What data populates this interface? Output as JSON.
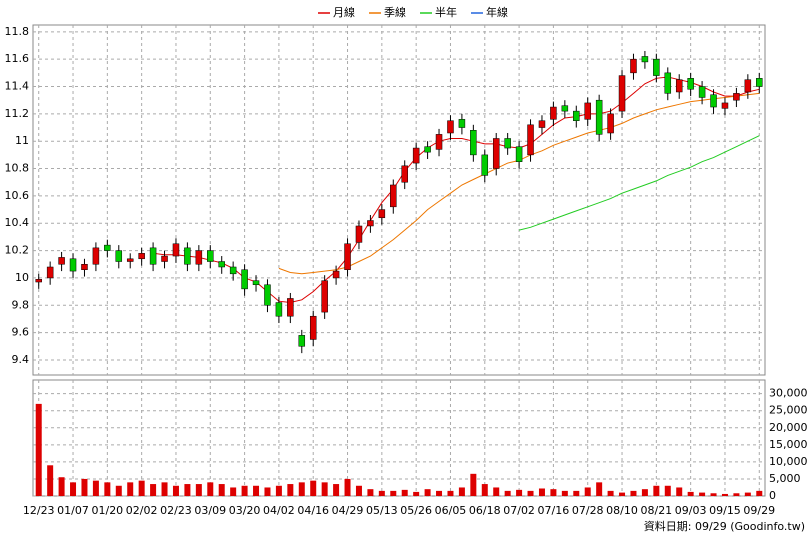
{
  "chart_data": {
    "type": "candlestick",
    "categories": [
      "12/23",
      null,
      null,
      "01/07",
      null,
      null,
      "01/20",
      null,
      null,
      "02/02",
      null,
      null,
      "02/23",
      null,
      null,
      "03/09",
      null,
      null,
      "03/20",
      null,
      null,
      "04/02",
      null,
      null,
      "04/16",
      null,
      null,
      "04/29",
      null,
      null,
      "05/13",
      null,
      null,
      "05/26",
      null,
      null,
      "06/05",
      null,
      null,
      "06/18",
      null,
      null,
      "07/02",
      null,
      null,
      "07/16",
      null,
      null,
      "07/28",
      null,
      null,
      "08/10",
      null,
      null,
      "08/21",
      null,
      null,
      "09/03",
      null,
      null,
      "09/15",
      null,
      null,
      "09/29"
    ],
    "open": [
      9.97,
      10.0,
      10.1,
      10.14,
      10.06,
      10.1,
      10.24,
      10.2,
      10.12,
      10.14,
      10.22,
      10.12,
      10.16,
      10.22,
      10.1,
      10.2,
      10.12,
      10.08,
      10.06,
      9.98,
      9.95,
      9.82,
      9.72,
      9.58,
      9.55,
      9.75,
      10.0,
      10.06,
      10.26,
      10.38,
      10.44,
      10.52,
      10.7,
      10.84,
      10.96,
      10.94,
      11.06,
      11.16,
      11.08,
      10.9,
      10.8,
      11.02,
      10.96,
      10.9,
      11.1,
      11.16,
      11.26,
      11.22,
      11.16,
      11.3,
      11.06,
      11.22,
      11.5,
      11.62,
      11.6,
      11.5,
      11.36,
      11.46,
      11.4,
      11.34,
      11.24,
      11.3,
      11.36,
      11.46
    ],
    "high": [
      10.03,
      10.12,
      10.19,
      10.18,
      10.14,
      10.26,
      10.28,
      10.24,
      10.18,
      10.22,
      10.26,
      10.2,
      10.29,
      10.26,
      10.24,
      10.24,
      10.16,
      10.12,
      10.1,
      10.02,
      9.99,
      9.86,
      9.89,
      9.62,
      9.76,
      10.02,
      10.09,
      10.29,
      10.42,
      10.46,
      10.54,
      10.72,
      10.86,
      10.99,
      11.0,
      11.09,
      11.19,
      11.2,
      11.12,
      10.94,
      11.06,
      11.06,
      11.0,
      11.16,
      11.19,
      11.29,
      11.3,
      11.26,
      11.32,
      11.34,
      11.24,
      11.52,
      11.64,
      11.66,
      11.64,
      11.54,
      11.49,
      11.5,
      11.44,
      11.38,
      11.32,
      11.39,
      11.49,
      11.5
    ],
    "low": [
      9.92,
      9.95,
      10.05,
      10.0,
      10.01,
      10.05,
      10.15,
      10.07,
      10.07,
      10.09,
      10.05,
      10.07,
      10.11,
      10.05,
      10.05,
      10.07,
      10.03,
      9.98,
      9.87,
      9.9,
      9.75,
      9.67,
      9.67,
      9.45,
      9.5,
      9.7,
      9.95,
      10.01,
      10.21,
      10.33,
      10.39,
      10.47,
      10.65,
      10.79,
      10.87,
      10.89,
      11.01,
      11.05,
      10.85,
      10.7,
      10.75,
      10.9,
      10.8,
      10.85,
      11.05,
      11.11,
      11.17,
      11.1,
      11.11,
      11.0,
      11.01,
      11.17,
      11.45,
      11.53,
      11.43,
      11.3,
      11.31,
      11.33,
      11.27,
      11.2,
      11.19,
      11.25,
      11.31,
      11.35
    ],
    "close": [
      9.99,
      10.08,
      10.15,
      10.05,
      10.1,
      10.22,
      10.2,
      10.12,
      10.14,
      10.18,
      10.1,
      10.16,
      10.25,
      10.1,
      10.2,
      10.12,
      10.08,
      10.03,
      9.92,
      9.95,
      9.8,
      9.72,
      9.85,
      9.5,
      9.72,
      9.98,
      10.05,
      10.25,
      10.38,
      10.42,
      10.5,
      10.68,
      10.82,
      10.95,
      10.92,
      11.05,
      11.15,
      11.1,
      10.9,
      10.75,
      11.02,
      10.95,
      10.85,
      11.12,
      11.15,
      11.25,
      11.22,
      11.15,
      11.28,
      11.05,
      11.2,
      11.48,
      11.6,
      11.58,
      11.48,
      11.35,
      11.45,
      11.38,
      11.32,
      11.25,
      11.28,
      11.35,
      11.45,
      11.4
    ],
    "up_color": "#dd0000",
    "down_color": "#00cc00",
    "series": [
      {
        "name": "月線",
        "color": "#dd0000",
        "values": [
          null,
          null,
          null,
          null,
          null,
          null,
          null,
          null,
          null,
          null,
          10.18,
          10.17,
          10.17,
          10.16,
          10.15,
          10.13,
          10.11,
          10.07,
          10.0,
          9.97,
          9.9,
          9.83,
          9.82,
          9.84,
          9.9,
          9.98,
          10.05,
          10.15,
          10.28,
          10.42,
          10.55,
          10.65,
          10.78,
          10.88,
          10.95,
          11.0,
          11.02,
          11.02,
          11.0,
          10.98,
          10.98,
          10.96,
          10.95,
          10.98,
          11.05,
          11.12,
          11.17,
          11.18,
          11.2,
          11.2,
          11.22,
          11.28,
          11.35,
          11.42,
          11.46,
          11.47,
          11.45,
          11.43,
          11.4,
          11.36,
          11.33,
          11.33,
          11.36,
          11.38
        ]
      },
      {
        "name": "季線",
        "color": "#ee7700",
        "values": [
          null,
          null,
          null,
          null,
          null,
          null,
          null,
          null,
          null,
          null,
          null,
          null,
          null,
          null,
          null,
          null,
          null,
          null,
          null,
          null,
          null,
          10.07,
          10.04,
          10.03,
          10.04,
          10.05,
          10.06,
          10.08,
          10.12,
          10.16,
          10.22,
          10.28,
          10.35,
          10.42,
          10.5,
          10.56,
          10.62,
          10.68,
          10.72,
          10.76,
          10.8,
          10.84,
          10.86,
          10.9,
          10.93,
          10.97,
          11.0,
          11.03,
          11.06,
          11.08,
          11.1,
          11.13,
          11.17,
          11.2,
          11.23,
          11.25,
          11.27,
          11.29,
          11.3,
          11.31,
          11.32,
          11.33,
          11.34,
          11.35
        ]
      },
      {
        "name": "半年",
        "color": "#22cc22",
        "values": [
          null,
          null,
          null,
          null,
          null,
          null,
          null,
          null,
          null,
          null,
          null,
          null,
          null,
          null,
          null,
          null,
          null,
          null,
          null,
          null,
          null,
          null,
          null,
          null,
          null,
          null,
          null,
          null,
          null,
          null,
          null,
          null,
          null,
          null,
          null,
          null,
          null,
          null,
          null,
          null,
          null,
          null,
          10.35,
          10.37,
          10.4,
          10.43,
          10.46,
          10.49,
          10.52,
          10.55,
          10.58,
          10.62,
          10.65,
          10.68,
          10.71,
          10.75,
          10.78,
          10.81,
          10.85,
          10.88,
          10.92,
          10.96,
          11.0,
          11.04
        ]
      },
      {
        "name": "年線",
        "color": "#2266dd",
        "values": [
          null,
          null,
          null,
          null,
          null,
          null,
          null,
          null,
          null,
          null,
          null,
          null,
          null,
          null,
          null,
          null,
          null,
          null,
          null,
          null,
          null,
          null,
          null,
          null,
          null,
          null,
          null,
          null,
          null,
          null,
          null,
          null,
          null,
          null,
          null,
          null,
          null,
          null,
          null,
          null,
          null,
          null,
          null,
          null,
          null,
          null,
          null,
          null,
          null,
          null,
          null,
          null,
          null,
          null,
          null,
          null,
          null,
          null,
          null,
          null,
          null,
          null,
          null,
          null
        ]
      }
    ],
    "ylim": [
      9.29,
      11.85
    ],
    "yticks": [
      9.4,
      9.6,
      9.8,
      10,
      10.2,
      10.4,
      10.6,
      10.8,
      11,
      11.2,
      11.4,
      11.6,
      11.8
    ],
    "grid": true,
    "volume": {
      "color": "#dd0000",
      "values": [
        27000,
        9000,
        5500,
        4000,
        5000,
        4500,
        4000,
        3000,
        4000,
        4500,
        3500,
        4000,
        3000,
        3500,
        3500,
        4000,
        3500,
        2500,
        3000,
        3000,
        2500,
        3000,
        3500,
        4000,
        4500,
        4000,
        3500,
        5000,
        3000,
        2000,
        1500,
        1500,
        1800,
        1200,
        2000,
        1500,
        1500,
        2500,
        6500,
        3500,
        2500,
        1500,
        1800,
        1500,
        2200,
        2000,
        1500,
        1500,
        2500,
        4000,
        1500,
        1000,
        1500,
        2000,
        3000,
        3000,
        2500,
        1200,
        1000,
        800,
        600,
        800,
        1000,
        1500
      ],
      "ylim": [
        0,
        34000
      ],
      "yticks": [
        0,
        {
          "value": 5000,
          "label": "5,000"
        },
        {
          "value": 10000,
          "label": "10,000"
        },
        {
          "value": 15000,
          "label": "15,000"
        },
        {
          "value": 20000,
          "label": "20,000"
        },
        {
          "value": 25000,
          "label": "25,000"
        },
        {
          "value": 30000,
          "label": "30,000"
        }
      ]
    },
    "footer": "資料日期: 09/29 (Goodinfo.tw)"
  }
}
